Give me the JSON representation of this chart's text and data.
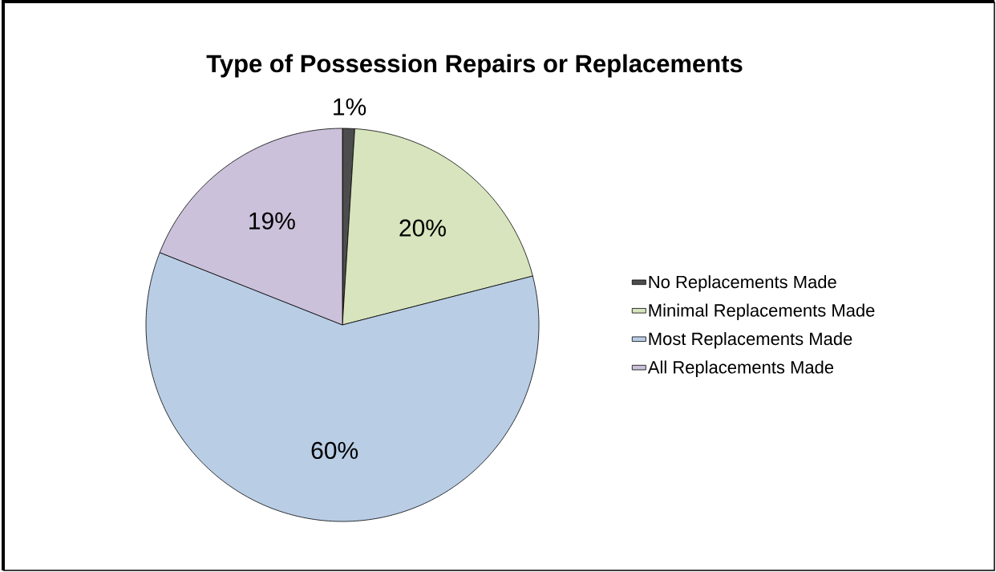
{
  "chart_data": {
    "type": "pie",
    "title": "Type of Possession Repairs or Replacements",
    "categories": [
      "No Replacements Made",
      "Minimal Replacements Made",
      "Most Replacements Made",
      "All Replacements Made"
    ],
    "values": [
      1,
      20,
      60,
      19
    ],
    "value_labels": [
      "1%",
      "20%",
      "60%",
      "19%"
    ],
    "colors": [
      "#4d4d4d",
      "#d7e4bd",
      "#b9cde5",
      "#ccc1da"
    ],
    "legend": "right"
  }
}
